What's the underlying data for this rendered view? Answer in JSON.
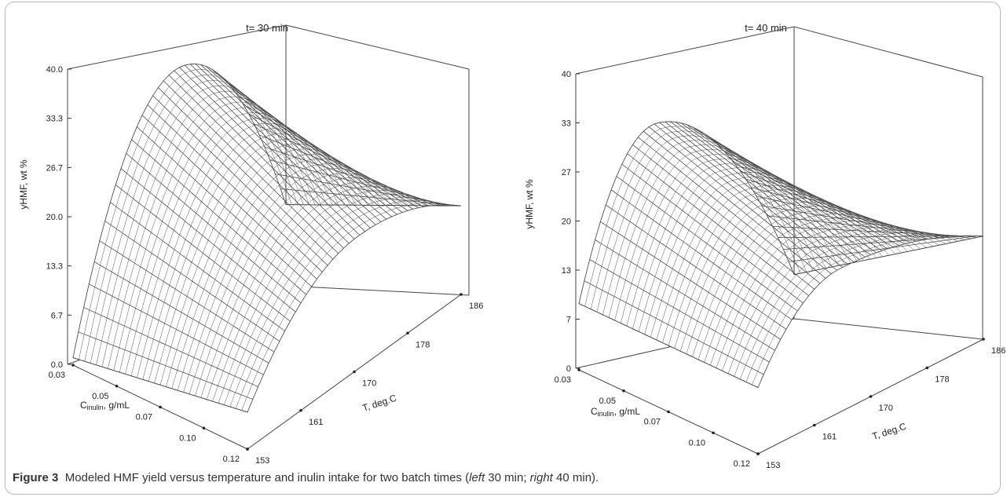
{
  "chart_data": [
    {
      "type": "surface",
      "title": "t= 30 min",
      "zlabel": "yHMF, wt %",
      "xlabel": "T, deg.C",
      "ylabel_main": "C",
      "ylabel_sub": "inulin",
      "ylabel_rest": ", g/mL",
      "z_ticks": [
        "0.0",
        "6.7",
        "13.3",
        "20.0",
        "26.7",
        "33.3",
        "40.0"
      ],
      "zlim": [
        0,
        40
      ],
      "T_ticks": [
        "153",
        "161",
        "170",
        "178",
        "186"
      ],
      "C_ticks": [
        "0.03",
        "0.05",
        "0.07",
        "0.10",
        "0.12"
      ],
      "xlim": [
        153,
        186
      ],
      "ylim": [
        0.03,
        0.12
      ],
      "corner_values": {
        "T153_C0.03": 1,
        "T153_C0.12": 5,
        "T186_C0.03": 11,
        "T186_C0.12": 12
      },
      "peak": {
        "T": 170,
        "C": 0.03,
        "value": 35
      }
    },
    {
      "type": "surface",
      "title": "t= 40 min",
      "zlabel": "yHMF, wt %",
      "xlabel": "T, deg.C",
      "ylabel_main": "C",
      "ylabel_sub": "inulin",
      "ylabel_rest": ", g/mL",
      "z_ticks": [
        "0",
        "7",
        "13",
        "20",
        "27",
        "33",
        "40"
      ],
      "zlim": [
        0,
        40
      ],
      "T_ticks": [
        "153",
        "161",
        "170",
        "178",
        "186"
      ],
      "C_ticks": [
        "0.03",
        "0.05",
        "0.07",
        "0.10",
        "0.12"
      ],
      "xlim": [
        153,
        186
      ],
      "ylim": [
        0.03,
        0.12
      ],
      "corner_values": {
        "T153_C0.03": 9,
        "T153_C0.12": 9,
        "T186_C0.03": 6,
        "T186_C0.12": 14
      },
      "peak": {
        "T": 165,
        "C": 0.03,
        "value": 31
      }
    }
  ],
  "caption": {
    "label": "Figure 3",
    "text_a": "Modeled HMF yield versus temperature and inulin intake for two batch times (",
    "left_word": "left",
    "text_b": " 30 min; ",
    "right_word": "right",
    "text_c": " 40 min)."
  }
}
